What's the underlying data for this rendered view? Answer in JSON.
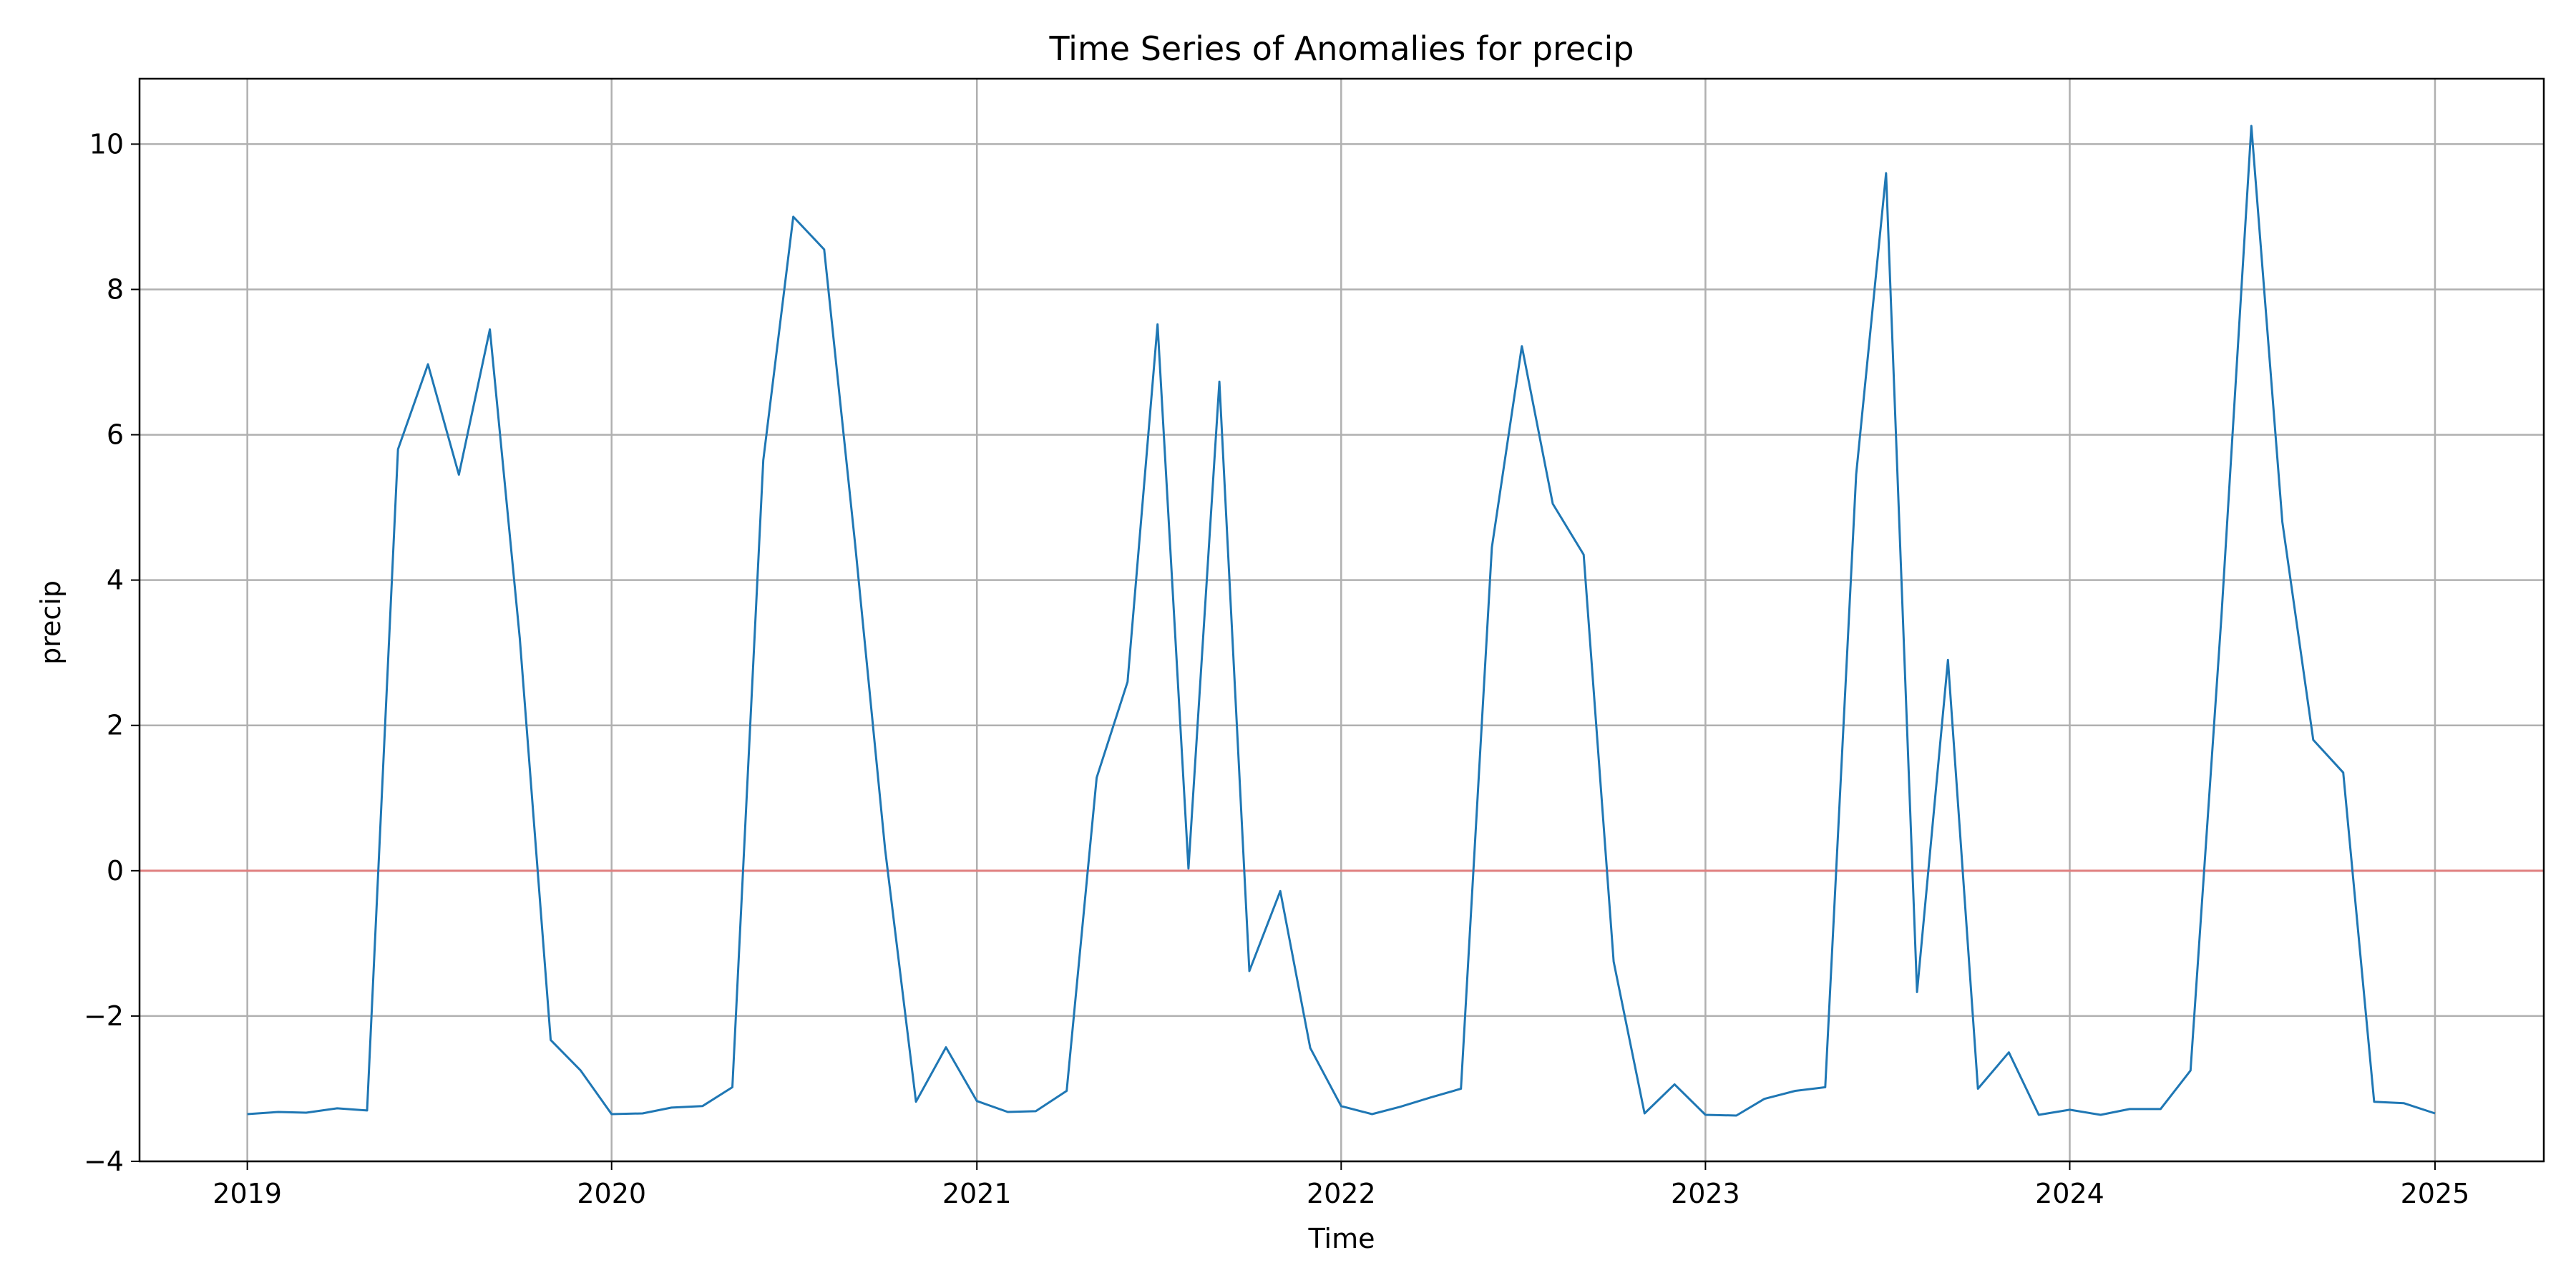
{
  "chart_data": {
    "type": "line",
    "title": "Time Series of Anomalies for precip",
    "xlabel": "Time",
    "ylabel": "precip",
    "xlim": [
      "2018-09-15",
      "2025-04-20"
    ],
    "ylim": [
      -4,
      10.9
    ],
    "x_ticks": [
      "2019",
      "2020",
      "2021",
      "2022",
      "2023",
      "2024",
      "2025"
    ],
    "y_ticks": [
      -4,
      -2,
      0,
      2,
      4,
      6,
      8,
      10
    ],
    "y_tick_labels": [
      "−4",
      "−2",
      "0",
      "2",
      "4",
      "6",
      "8",
      "10"
    ],
    "grid": true,
    "reference_line": {
      "y": 0,
      "color": "#e07f7f"
    },
    "series": [
      {
        "color": "#1f77b4",
        "x": [
          "2019-01",
          "2019-02",
          "2019-03",
          "2019-04",
          "2019-05",
          "2019-06",
          "2019-07",
          "2019-08",
          "2019-09",
          "2019-10",
          "2019-11",
          "2019-12",
          "2020-01",
          "2020-02",
          "2020-03",
          "2020-04",
          "2020-05",
          "2020-06",
          "2020-07",
          "2020-08",
          "2020-09",
          "2020-10",
          "2020-11",
          "2020-12",
          "2021-01",
          "2021-02",
          "2021-03",
          "2021-04",
          "2021-05",
          "2021-06",
          "2021-07",
          "2021-08",
          "2021-09",
          "2021-10",
          "2021-11",
          "2021-12",
          "2022-01",
          "2022-02",
          "2022-03",
          "2022-04",
          "2022-05",
          "2022-06",
          "2022-07",
          "2022-08",
          "2022-09",
          "2022-10",
          "2022-11",
          "2022-12",
          "2023-01",
          "2023-02",
          "2023-03",
          "2023-04",
          "2023-05",
          "2023-06",
          "2023-07",
          "2023-08",
          "2023-09",
          "2023-10",
          "2023-11",
          "2023-12",
          "2024-01",
          "2024-02",
          "2024-03",
          "2024-04",
          "2024-05",
          "2024-06",
          "2024-07",
          "2024-08",
          "2024-09",
          "2024-10",
          "2024-11",
          "2024-12",
          "2025-01"
        ],
        "values": [
          -3.35,
          -3.32,
          -3.33,
          -3.27,
          -3.3,
          5.8,
          6.97,
          5.45,
          7.45,
          3.2,
          -2.33,
          -2.75,
          -3.35,
          -3.34,
          -3.26,
          -3.24,
          -2.98,
          5.65,
          9.0,
          8.55,
          4.5,
          0.3,
          -3.18,
          -2.43,
          -3.17,
          -3.32,
          -3.31,
          -3.03,
          1.28,
          2.6,
          7.52,
          0.03,
          6.73,
          -1.38,
          -0.28,
          -2.44,
          -3.24,
          -3.35,
          -3.25,
          -3.12,
          -3.0,
          4.45,
          7.22,
          5.05,
          4.35,
          -1.25,
          -3.34,
          -2.94,
          -3.36,
          -3.37,
          -3.14,
          -3.03,
          -2.98,
          5.45,
          9.6,
          -1.67,
          2.9,
          -3.0,
          -2.5,
          -3.36,
          -3.29,
          -3.36,
          -3.28,
          -3.28,
          -2.75,
          3.5,
          10.25,
          4.8,
          1.8,
          1.35,
          -3.18,
          -3.2,
          -3.34
        ]
      }
    ]
  }
}
